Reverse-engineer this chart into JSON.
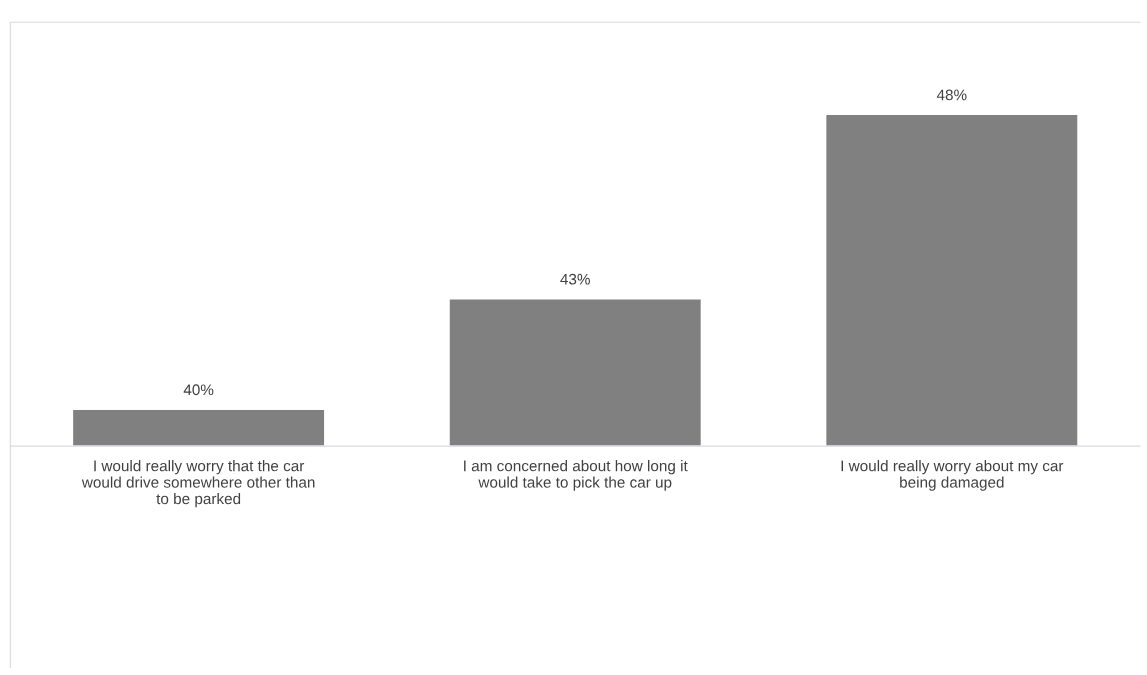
{
  "chart_data": {
    "type": "bar",
    "categories": [
      "I would really worry that the car would drive somewhere other than to be parked",
      "I am concerned about how long it would take to pick the car up",
      "I would really worry about my car being damaged"
    ],
    "values": [
      40,
      43,
      48
    ],
    "value_labels": [
      "40%",
      "43%",
      "48%"
    ],
    "color": "#808080",
    "ylim": [
      39,
      50.5
    ],
    "tick_labels": "x",
    "grid": false,
    "legend": false
  }
}
